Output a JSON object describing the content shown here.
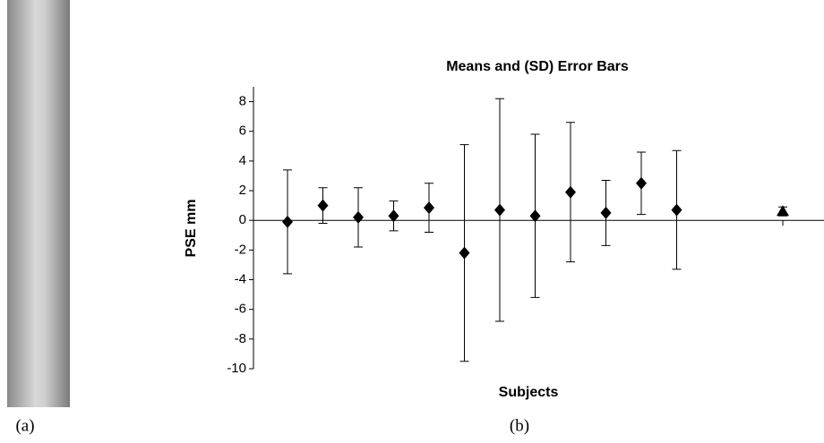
{
  "panel_labels": [
    "(a)",
    "(b)"
  ],
  "chart_data": {
    "type": "errorbar",
    "title": "Means and (SD) Error Bars",
    "x_label": "Subjects",
    "y_label": "PSE mm",
    "categories": [
      null,
      null,
      null,
      null,
      null,
      null,
      null,
      null,
      null,
      null,
      null,
      null,
      null,
      null,
      null
    ],
    "series": [
      {
        "marker": "diamond",
        "color": "#000000",
        "values": [
          -0.1,
          1.0,
          0.2,
          0.3,
          0.85,
          -2.2,
          0.7,
          0.3,
          1.9,
          0.5,
          2.5,
          0.7,
          null,
          null,
          null
        ],
        "errors": [
          3.5,
          1.2,
          2.0,
          1.0,
          1.65,
          7.3,
          7.5,
          5.5,
          4.7,
          2.2,
          2.1,
          4.0,
          null,
          null,
          null
        ]
      },
      {
        "marker": "triangle",
        "color": "#000000",
        "values": [
          null,
          null,
          null,
          null,
          null,
          null,
          null,
          null,
          null,
          null,
          null,
          null,
          null,
          null,
          0.6
        ],
        "errors": [
          null,
          null,
          null,
          null,
          null,
          null,
          null,
          null,
          null,
          null,
          null,
          null,
          null,
          null,
          0.3
        ]
      }
    ],
    "ylim": [
      -10,
      9
    ],
    "yticks": [
      -10,
      -8,
      -6,
      -4,
      -2,
      0,
      2,
      4,
      6,
      8
    ]
  }
}
